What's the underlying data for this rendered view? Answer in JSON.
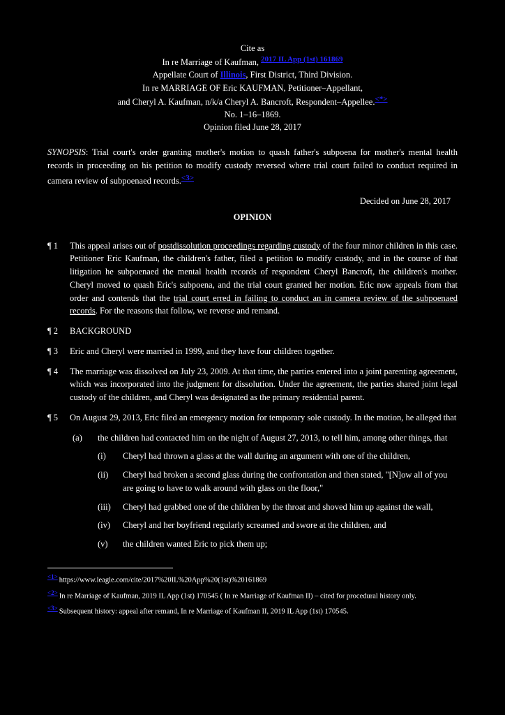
{
  "header": {
    "line1": "Cite as",
    "line2_pre": "In re Marriage of Kaufman, ",
    "line2_cite": "2017 IL App (1st) 161869",
    "line3_pre": "Appellate Court of ",
    "line3_link": "Illinois",
    "line3_post": ", First District, Third Division.",
    "line4": "In re MARRIAGE OF Eric KAUFMAN, Petitioner–Appellant,",
    "line5_pre": "and Cheryl A. Kaufman, n/k/a Cheryl A. Bancroft, Respondent–Appellee.",
    "line5_fn": "<*>",
    "line6": "No. 1–16–1869.",
    "line7": "Opinion filed June 28, 2017"
  },
  "holding_label": "SYNOPSIS",
  "holding_text": "Trial court's order granting mother's motion to quash father's subpoena for mother's mental health records in proceeding on his petition to modify custody reversed where trial court failed to conduct required in camera review of subpoenaed records.",
  "date": "Decided on June 28, 2017",
  "title": "OPINION",
  "p1": {
    "num": "¶ 1",
    "pre": "This appeal arises out of ",
    "u": "postdissolution proceedings regarding custody",
    "post": " of the four minor children in this case. Petitioner Eric Kaufman, the children's father, filed a petition to modify custody, and in the course of that litigation he subpoenaed the mental health records of respondent Cheryl Bancroft, the children's mother. Cheryl moved to quash Eric's subpoena, and the trial court granted her motion. Eric now appeals from that order and contends that the "
  },
  "p1_cont": {
    "u": "trial court erred in failing to conduct an in camera review of the subpoenaed records",
    "post": ". For the reasons that follow, we reverse and remand."
  },
  "p2": {
    "num": "¶ 2",
    "text": "BACKGROUND"
  },
  "p3": {
    "num": "¶ 3",
    "text": "Eric and Cheryl were married in 1999, and they have four children together."
  },
  "p4": {
    "num": "¶ 4",
    "text": "The marriage was dissolved on July 23, 2009. At that time, the parties entered into a joint parenting agreement, which was incorporated into the judgment for dissolution. Under the agreement, the parties shared joint legal custody of the children, and Cheryl was designated as the primary residential parent."
  },
  "p5": {
    "num": "¶ 5",
    "text": "On August 29, 2013, Eric filed an emergency motion for temporary sole custody. In the motion, he alleged that"
  },
  "sub_a": {
    "lbl": "(a)",
    "text": "the children had contacted him on the night of August 27, 2013, to tell him, among other things, that"
  },
  "subsub_i": {
    "lbl": "(i)",
    "text": "Cheryl had thrown a glass at the wall during an argument with one of the children,"
  },
  "subsub_ii": {
    "lbl": "(ii)",
    "text": "Cheryl had broken a second glass during the confrontation and then stated, \"[N]ow all of you are going to have to walk around with glass on the floor,\""
  },
  "subsub_iii": {
    "lbl": "(iii)",
    "text": "Cheryl had grabbed one of the children by the throat and shoved him up against the wall,"
  },
  "subsub_iv": {
    "lbl": "(iv)",
    "text": "Cheryl and her boyfriend regularly screamed and swore at the children, and"
  },
  "subsub_v": {
    "lbl": "(v)",
    "text": "the children wanted Eric to pick them up;"
  },
  "footnotes": {
    "fn1": {
      "num": "<1>",
      "text": "https://www.leagle.com/cite/2017%20IL%20App%20(1st)%20161869"
    },
    "fn2": {
      "num": "<2>",
      "text": "In re Marriage of Kaufman, 2019 IL App (1st) 170545 ( In re Marriage of Kaufman II) – cited for procedural history only."
    },
    "fn3": {
      "num": "<3>",
      "text": "Subsequent history: appeal after remand, In re Marriage of Kaufman II, 2019 IL App (1st) 170545."
    }
  }
}
